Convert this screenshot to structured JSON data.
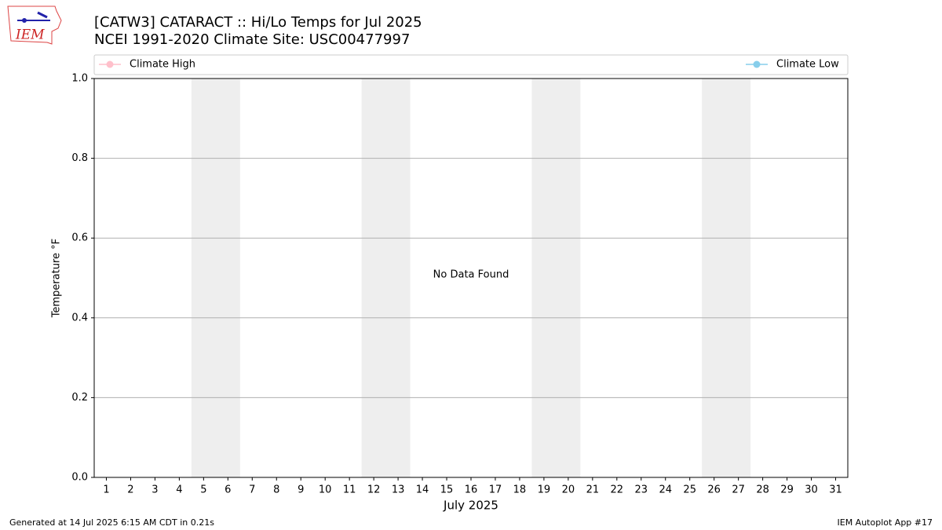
{
  "logo_text": "IEM",
  "chart_data": {
    "type": "line",
    "title": "[CATW3] CATARACT :: Hi/Lo Temps for Jul 2025",
    "subtitle": "NCEI 1991-2020 Climate Site: USC00477997",
    "xlabel": "July 2025",
    "ylabel": "Temperature °F",
    "annotation": "No Data Found",
    "x": [],
    "series": [
      {
        "name": "Climate High",
        "color": "#ffc0cb",
        "values": []
      },
      {
        "name": "Climate Low",
        "color": "#87ceeb",
        "values": []
      }
    ],
    "xlim": [
      0.5,
      31.5
    ],
    "xticks": [
      1,
      2,
      3,
      4,
      5,
      6,
      7,
      8,
      9,
      10,
      11,
      12,
      13,
      14,
      15,
      16,
      17,
      18,
      19,
      20,
      21,
      22,
      23,
      24,
      25,
      26,
      27,
      28,
      29,
      30,
      31
    ],
    "ylim": [
      0,
      1
    ],
    "yticks": [
      {
        "value": 0,
        "label": "0.0"
      },
      0.2,
      0.4,
      0.6,
      0.8,
      {
        "value": 1,
        "label": "1.0"
      }
    ],
    "shaded_spans": [
      [
        4.5,
        6.5
      ],
      [
        11.5,
        13.5
      ],
      [
        18.5,
        20.5
      ],
      [
        25.5,
        27.5
      ]
    ],
    "grid": true,
    "footer_left": "Generated at 14 Jul 2025 6:15 AM CDT in 0.21s",
    "footer_right": "IEM Autoplot App #17"
  }
}
